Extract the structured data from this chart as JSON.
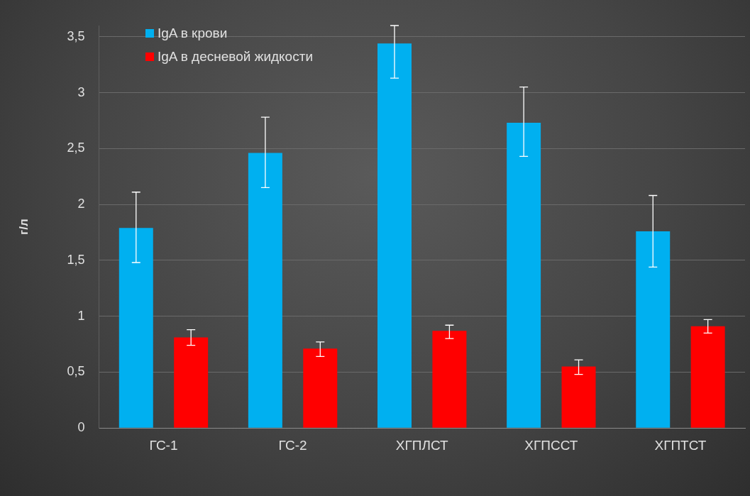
{
  "chart_data": {
    "type": "bar",
    "ylabel": "г/л",
    "categories": [
      "ГС-1",
      "ГС-2",
      "ХГПЛСТ",
      "ХГПССТ",
      "ХГПТСТ"
    ],
    "series": [
      {
        "name": "IgA в крови",
        "color": "#00b0f0",
        "values": [
          1.79,
          2.46,
          3.44,
          2.73,
          1.76
        ],
        "errors": [
          [
            1.48,
            2.11
          ],
          [
            2.15,
            2.78
          ],
          [
            3.13,
            3.6
          ],
          [
            2.43,
            3.05
          ],
          [
            1.44,
            2.08
          ]
        ]
      },
      {
        "name": "IgA в десневой жидкости",
        "color": "#ff0000",
        "values": [
          0.81,
          0.71,
          0.87,
          0.55,
          0.91
        ],
        "errors": [
          [
            0.74,
            0.88
          ],
          [
            0.64,
            0.77
          ],
          [
            0.8,
            0.92
          ],
          [
            0.48,
            0.61
          ],
          [
            0.85,
            0.97
          ]
        ]
      }
    ],
    "ylim": [
      0,
      3.6
    ],
    "yticks": [
      0,
      {
        "value": 0.5,
        "label": "0,5"
      },
      1,
      {
        "value": 1.5,
        "label": "1,5"
      },
      2,
      {
        "value": 2.5,
        "label": "2,5"
      },
      3,
      {
        "value": 3.5,
        "label": "3,5"
      }
    ],
    "grid": "y",
    "legend": "top left"
  }
}
